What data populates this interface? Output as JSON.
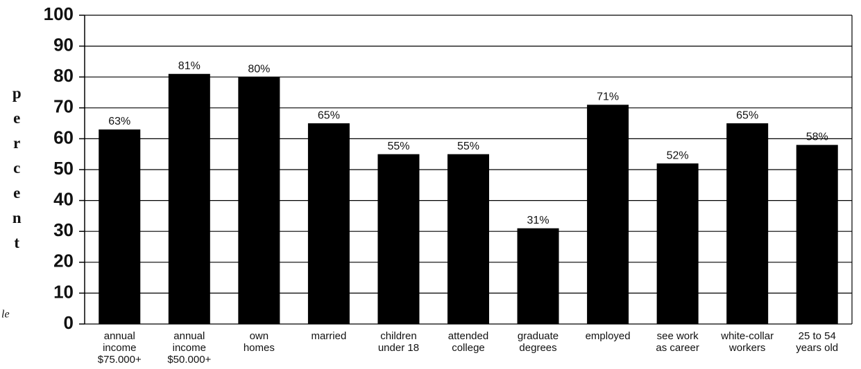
{
  "chart_data": {
    "type": "bar",
    "y_label": "percent",
    "annotation": "le",
    "categories": [
      [
        "annual",
        "income",
        "$75.000+"
      ],
      [
        "annual",
        "income",
        "$50.000+"
      ],
      [
        "own",
        "homes"
      ],
      [
        "married"
      ],
      [
        "children",
        "under 18"
      ],
      [
        "attended",
        "college"
      ],
      [
        "graduate",
        "degrees"
      ],
      [
        "employed"
      ],
      [
        "see work",
        "as career"
      ],
      [
        "white-collar",
        "workers"
      ],
      [
        "25 to 54",
        "years old"
      ]
    ],
    "values": [
      63,
      81,
      80,
      65,
      55,
      55,
      31,
      71,
      52,
      65,
      58
    ],
    "value_labels": [
      "63%",
      "81%",
      "80%",
      "65%",
      "55%",
      "55%",
      "31%",
      "71%",
      "52%",
      "65%",
      "58%"
    ],
    "color": "#000000",
    "ylim": [
      0,
      100
    ],
    "yticks": [
      0,
      10,
      20,
      30,
      40,
      50,
      60,
      70,
      80,
      90,
      100
    ],
    "grid": true
  }
}
